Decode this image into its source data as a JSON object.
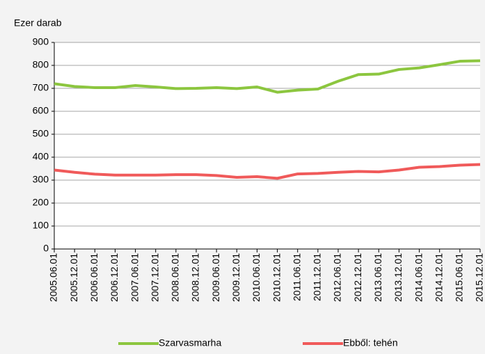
{
  "chart_data": {
    "type": "line",
    "ylabel": "Ezer darab",
    "categories": [
      "2005.06.01",
      "2005.12.01",
      "2006.06.01",
      "2006.12.01",
      "2007.06.01",
      "2007.12.01",
      "2008.06.01",
      "2008.12.01",
      "2009.06.01",
      "2009.12.01",
      "2010.06.01",
      "2010.12.01",
      "2011.06.01",
      "2011.12.01",
      "2012.06.01",
      "2012.12.01",
      "2013.06.01",
      "2013.12.01",
      "2014.06.01",
      "2014.12.01",
      "2015.06.01",
      "2015.12.01"
    ],
    "series": [
      {
        "name": "Szarvasmarha",
        "color": "#8cc63f",
        "values": [
          720,
          708,
          703,
          703,
          712,
          706,
          699,
          700,
          703,
          699,
          706,
          683,
          692,
          697,
          731,
          760,
          762,
          782,
          789,
          803,
          818,
          820
        ]
      },
      {
        "name": "Ebből: tehén",
        "color": "#f05a5a",
        "values": [
          344,
          334,
          326,
          322,
          322,
          322,
          324,
          324,
          320,
          312,
          315,
          308,
          327,
          329,
          334,
          338,
          336,
          344,
          356,
          359,
          365,
          368
        ]
      }
    ],
    "ylim": [
      0,
      900
    ],
    "yticks": [
      0,
      100,
      200,
      300,
      400,
      500,
      600,
      700,
      800,
      900
    ],
    "grid": true,
    "legend": "bottom"
  }
}
